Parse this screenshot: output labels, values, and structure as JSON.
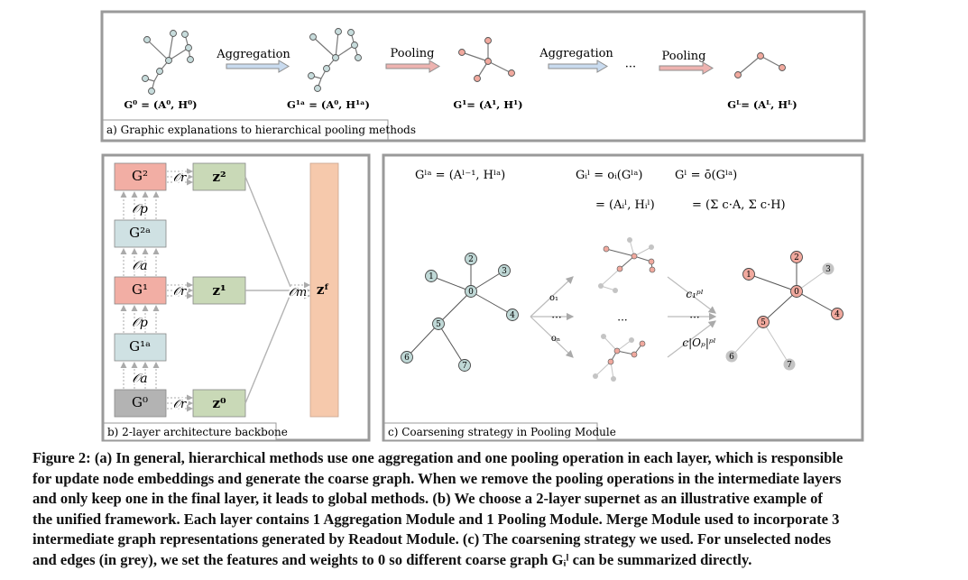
{
  "panel_a": {
    "label": "a) Graphic explanations to hierarchical pooling methods",
    "ops": [
      "Aggregation",
      "Pooling",
      "Aggregation",
      "Pooling"
    ],
    "ellipsis": "···",
    "graph_labels": [
      "G⁰ = (A⁰, H⁰)",
      "G¹ᵃ = (A⁰, H¹ᵃ)",
      "G¹= (A¹, H¹)",
      "Gᴸ= (Aᴸ, Hᴸ)"
    ]
  },
  "panel_b": {
    "label": "b) 2-layer architecture backbone",
    "blocks": {
      "g2": "G²",
      "g2a": "G²ᵃ",
      "g1": "G¹",
      "g1a": "G¹ᵃ",
      "g0": "G⁰",
      "z2": "z²",
      "z1": "z¹",
      "z0": "z⁰",
      "zf": "zᶠ"
    },
    "ops": {
      "op": "𝒪p",
      "oa": "𝒪a",
      "or": "𝒪r",
      "om": "𝒪m"
    }
  },
  "panel_c": {
    "label": "c) Coarsening strategy in Pooling Module",
    "eq1": "Gˡᵃ = (Aˡ⁻¹, Hˡᵃ)",
    "eq2a": "Gᵢˡ = oᵢ(Gˡᵃ)",
    "eq2b": "= (Aᵢˡ, Hᵢˡ)",
    "eq3a": "Gˡ = ō(Gˡᵃ)",
    "eq3b": "= (Σ c·A, Σ c·H)",
    "op_labels": [
      "o₁",
      "oₙ"
    ],
    "coef_labels": [
      "c₁ᵖˡ",
      "c|Oₚ|ᵖˡ"
    ],
    "dots": "···",
    "nodes_left": [
      "0",
      "1",
      "2",
      "3",
      "4",
      "5",
      "6",
      "7"
    ],
    "nodes_right": [
      "0",
      "1",
      "2",
      "3",
      "4",
      "5",
      "6",
      "7"
    ]
  },
  "caption": {
    "lines": [
      "Figure 2: (a) In general, hierarchical methods use one aggregation and one pooling operation in each layer, which is responsible",
      "for update node embeddings and generate the coarse graph. When we remove the pooling operations in the intermediate layers",
      "and only keep one in the final layer, it leads to global methods. (b) We choose a 2-layer supernet as an illustrative example of",
      "the unified framework. Each layer contains 1 Aggregation Module and 1 Pooling Module. Merge Module used to incorporate 3",
      "intermediate graph representations generated by Readout Module. (c) The coarsening strategy we used. For unselected nodes",
      "and edges (in grey), we set the features and weights to 0 so different coarse graph Gᵢˡ can be summarized directly."
    ]
  },
  "colors": {
    "node_teal": "#bfd8d6",
    "node_red": "#f1a99e",
    "node_grey": "#bdbdbd",
    "block_red": "#f2aea4",
    "block_teal": "#cfe1e3",
    "block_green": "#c9d9b7",
    "block_grey": "#b3b3b3",
    "merge_bar": "#f6c9ac",
    "arrow_blue": "#c9dbef",
    "arrow_red": "#eeb3b0",
    "frame": "#9a9a9a"
  }
}
